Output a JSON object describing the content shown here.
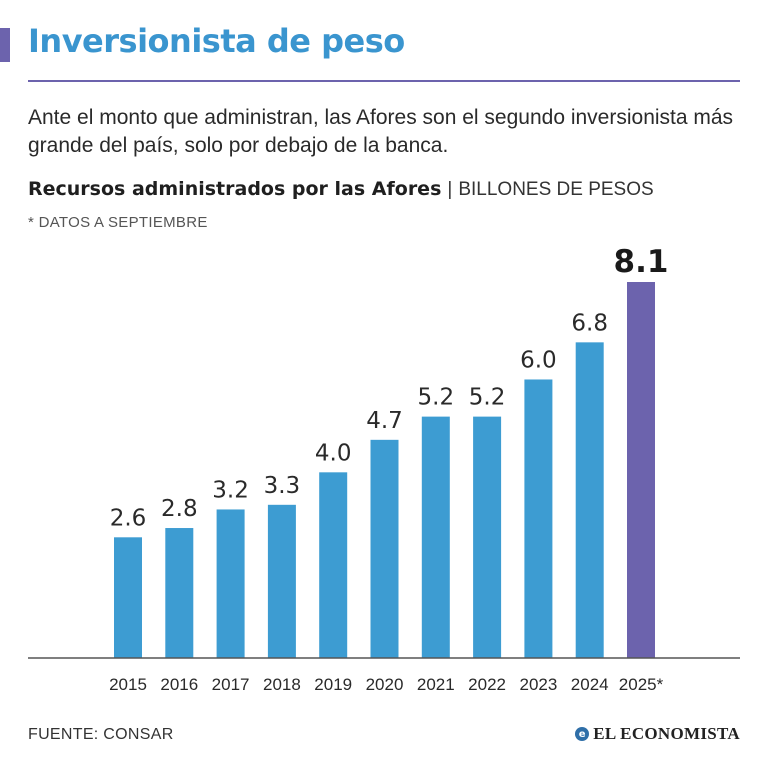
{
  "header": {
    "title": "Inversionista de peso",
    "intro": "Ante el monto que administran, las Afores son el segundo inversionista más grande del país, solo por debajo de la banca."
  },
  "chart_data": {
    "type": "bar",
    "title": "Recursos administrados por las Afores",
    "separator": "|",
    "unit": "BILLONES DE PESOS",
    "note": "* DATOS A SEPTIEMBRE",
    "categories": [
      "2015",
      "2016",
      "2017",
      "2018",
      "2019",
      "2020",
      "2021",
      "2022",
      "2023",
      "2024",
      "2025*"
    ],
    "values": [
      2.6,
      2.8,
      3.2,
      3.3,
      4.0,
      4.7,
      5.2,
      5.2,
      6.0,
      6.8,
      8.1
    ],
    "value_labels": [
      "2.6",
      "2.8",
      "3.2",
      "3.3",
      "4.0",
      "4.7",
      "5.2",
      "5.2",
      "6.0",
      "6.8",
      "8.1"
    ],
    "highlight_index": 10,
    "ylim": [
      0,
      8.1
    ],
    "xlabel": "",
    "ylabel": "",
    "grid": false,
    "colors": {
      "bar": "#3d9cd2",
      "highlight": "#6c63ad",
      "axis": "#555555"
    }
  },
  "footer": {
    "source": "FUENTE: CONSAR",
    "brand_mark": "e",
    "brand": "EL ECONOMISTA"
  },
  "colors": {
    "title": "#3a95cf",
    "accent": "#6c63ad"
  }
}
